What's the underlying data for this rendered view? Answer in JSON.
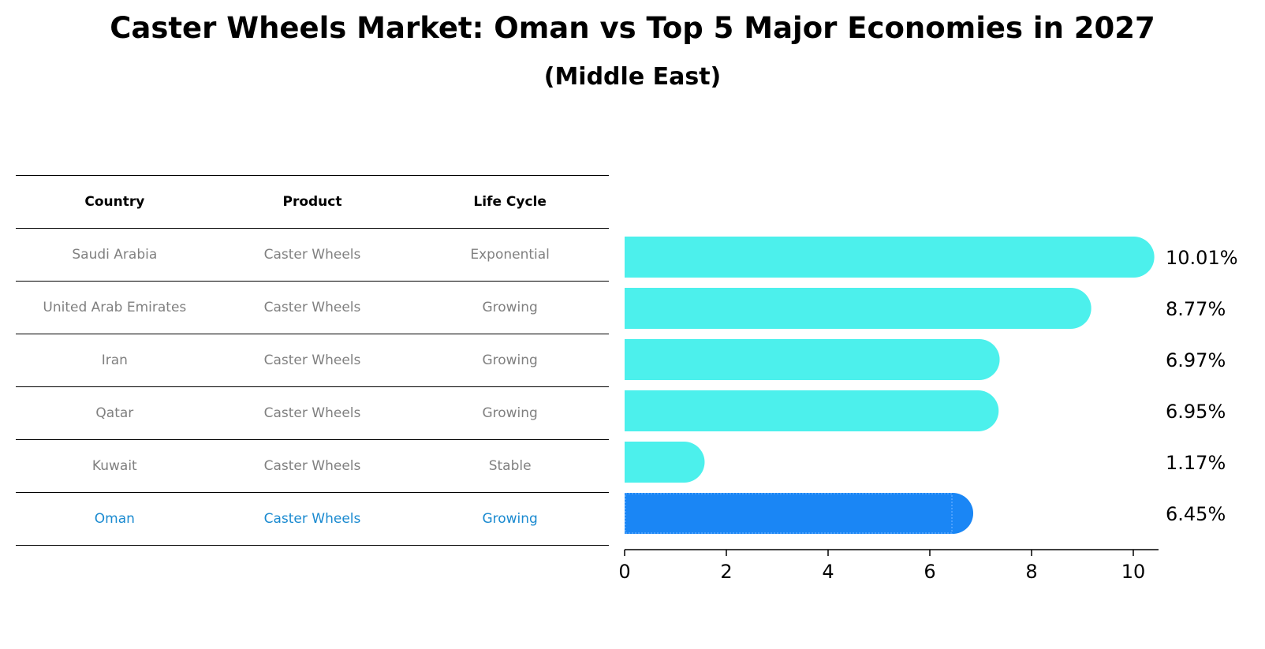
{
  "title": "Caster Wheels Market: Oman vs Top 5 Major Economies in 2027",
  "subtitle": "(Middle East)",
  "table": {
    "headers": [
      "Country",
      "Product",
      "Life Cycle"
    ],
    "rows": [
      [
        "Saudi Arabia",
        "Caster Wheels",
        "Exponential"
      ],
      [
        "United Arab Emirates",
        "Caster Wheels",
        "Growing"
      ],
      [
        "Iran",
        "Caster Wheels",
        "Growing"
      ],
      [
        "Qatar",
        "Caster Wheels",
        "Growing"
      ],
      [
        "Kuwait",
        "Caster Wheels",
        "Stable"
      ],
      [
        "Oman",
        "Caster Wheels",
        "Growing"
      ]
    ]
  },
  "chart_data": {
    "type": "bar",
    "orientation": "horizontal",
    "categories": [
      "Saudi Arabia",
      "United Arab Emirates",
      "Iran",
      "Qatar",
      "Kuwait",
      "Oman"
    ],
    "values": [
      10.01,
      8.77,
      6.97,
      6.95,
      1.17,
      6.45
    ],
    "data_labels": [
      "10.01%",
      "8.77%",
      "6.97%",
      "6.95%",
      "1.17%",
      "6.45%"
    ],
    "xlim": [
      0,
      10.5
    ],
    "xticks": [
      0,
      2,
      4,
      6,
      8,
      10
    ],
    "grid": false,
    "highlight_category": "Oman",
    "colors": {
      "default": "#4cf0ec",
      "highlight": "#1a86f5",
      "highlight_text": "#1a8ad0"
    }
  }
}
